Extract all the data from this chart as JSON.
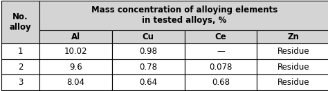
{
  "title_line1": "Mass concentration of alloying elements",
  "title_line2": "in tested alloys, %",
  "col0_header": "No.\nalloy",
  "col_headers": [
    "Al",
    "Cu",
    "Ce",
    "Zn"
  ],
  "rows": [
    [
      "1",
      "10.02",
      "0.98",
      "—",
      "Residue"
    ],
    [
      "2",
      "9.6",
      "0.78",
      "0.078",
      "Residue"
    ],
    [
      "3",
      "8.04",
      "0.64",
      "0.68",
      "Residue"
    ]
  ],
  "header_bg": "#d4d4d4",
  "row_bg": "#ffffff",
  "border_color": "#000000",
  "text_color": "#000000",
  "font_size": 8.5,
  "header_font_size": 8.5,
  "fig_width": 4.74,
  "fig_height": 1.32,
  "dpi": 100
}
